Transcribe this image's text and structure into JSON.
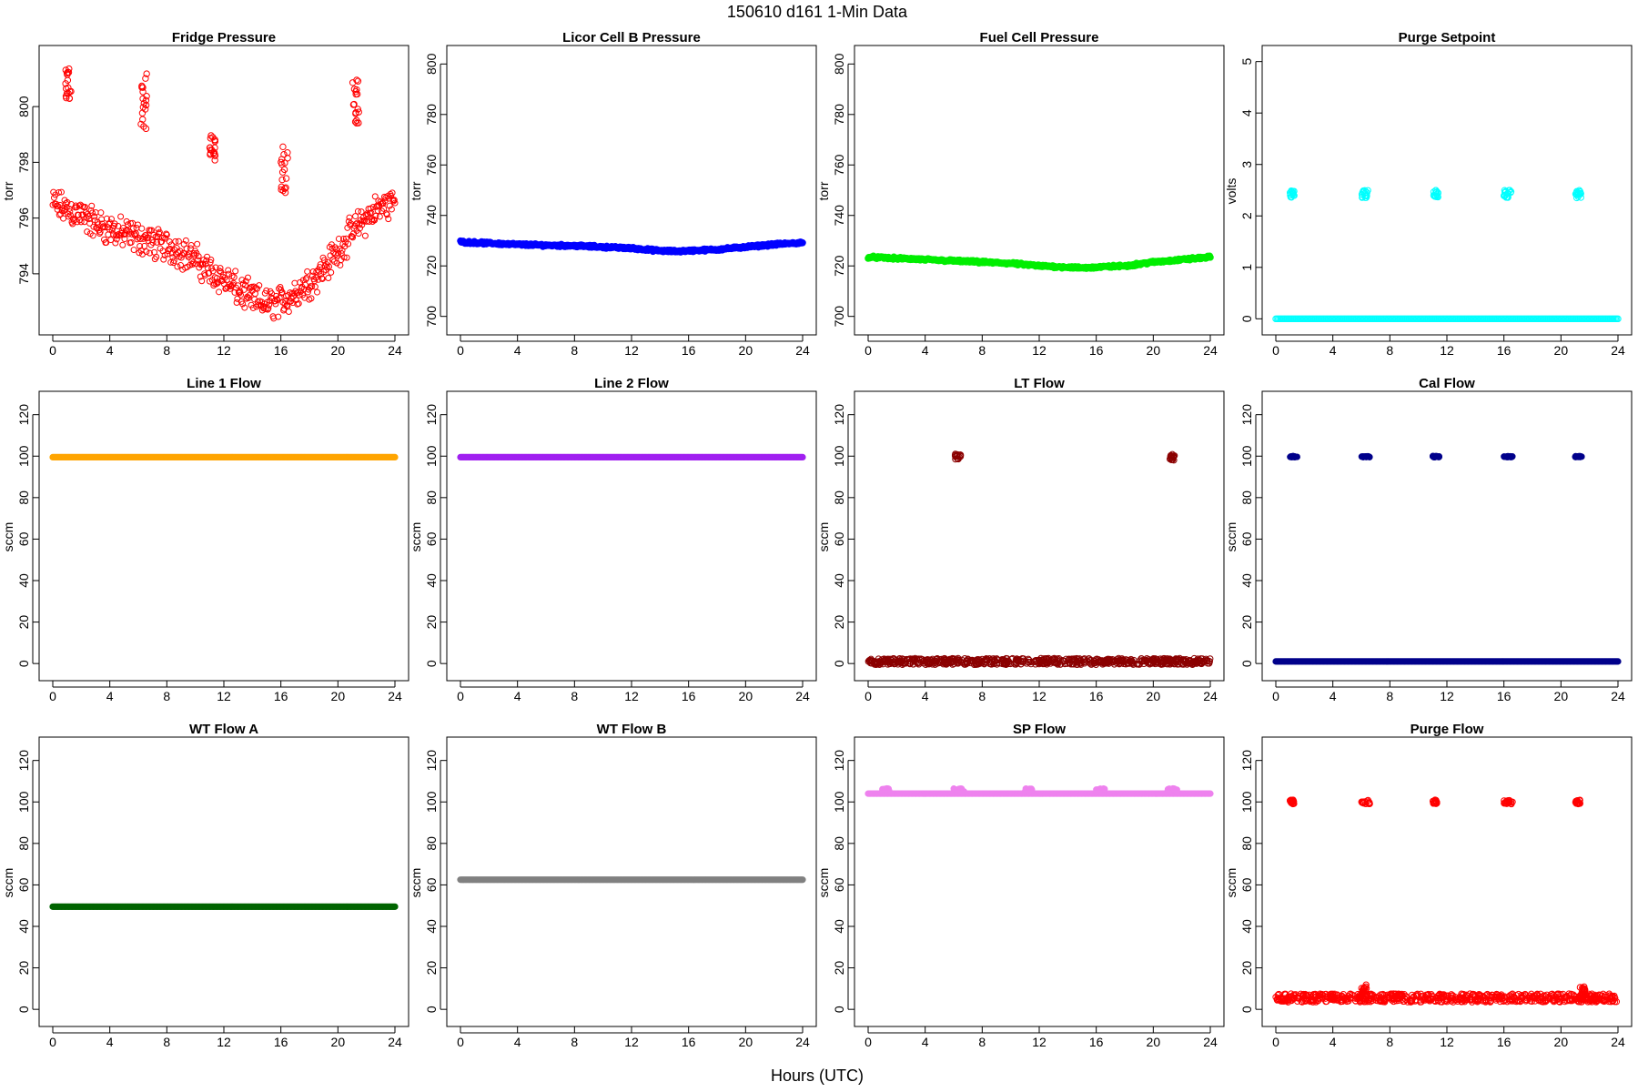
{
  "figure": {
    "title": "150610   d161   1-Min Data",
    "xlabel": "Hours (UTC)"
  },
  "chart_data": [
    {
      "type": "scatter",
      "title": "Fridge Pressure",
      "ylabel": "torr",
      "xlim": [
        0,
        24
      ],
      "ylim": [
        792.2,
        801.8
      ],
      "xticks": [
        0,
        4,
        8,
        12,
        16,
        20,
        24
      ],
      "yticks": [
        794,
        796,
        798,
        800
      ],
      "color": "#ff0000",
      "marker": "open-circle",
      "series": [
        {
          "kind": "trend",
          "x": [
            0,
            1,
            2,
            3,
            4,
            5,
            6,
            7,
            8,
            9,
            10,
            11,
            12,
            13,
            14,
            15,
            16,
            17,
            18,
            19,
            20,
            21,
            22,
            23,
            24
          ],
          "y": [
            796.5,
            796.3,
            796.1,
            795.8,
            795.6,
            795.4,
            795.3,
            795.1,
            795.0,
            794.8,
            794.5,
            794.1,
            793.8,
            793.4,
            793.1,
            792.9,
            793.0,
            793.3,
            793.7,
            794.2,
            794.8,
            795.5,
            796.0,
            796.4,
            796.6
          ],
          "spread": 0.5
        },
        {
          "kind": "cluster",
          "x": [
            0.9,
            1.3
          ],
          "y": [
            800.2,
            801.4
          ]
        },
        {
          "kind": "cluster",
          "x": [
            6.1,
            6.6
          ],
          "y": [
            799.1,
            801.3
          ]
        },
        {
          "kind": "cluster",
          "x": [
            11.0,
            11.4
          ],
          "y": [
            798.0,
            799.0
          ]
        },
        {
          "kind": "cluster",
          "x": [
            16.0,
            16.5
          ],
          "y": [
            796.9,
            798.7
          ]
        },
        {
          "kind": "cluster",
          "x": [
            21.0,
            21.5
          ],
          "y": [
            799.4,
            801.0
          ]
        }
      ]
    },
    {
      "type": "scatter",
      "title": "Licor Cell B Pressure",
      "ylabel": "torr",
      "xlim": [
        0,
        24
      ],
      "ylim": [
        697,
        803
      ],
      "xticks": [
        0,
        4,
        8,
        12,
        16,
        20,
        24
      ],
      "yticks": [
        700,
        720,
        740,
        760,
        780,
        800
      ],
      "color": "#0000ff",
      "marker": "filled-circle",
      "series": [
        {
          "kind": "trend",
          "x": [
            0,
            2,
            4,
            6,
            8,
            10,
            12,
            14,
            15,
            16,
            18,
            20,
            22,
            24
          ],
          "y": [
            729.5,
            729.0,
            728.5,
            728.2,
            728.0,
            727.5,
            727.0,
            726.0,
            725.8,
            726.0,
            726.5,
            727.5,
            728.5,
            729.2
          ],
          "spread": 0.4
        }
      ]
    },
    {
      "type": "scatter",
      "title": "Fuel Cell Pressure",
      "ylabel": "torr",
      "xlim": [
        0,
        24
      ],
      "ylim": [
        697,
        803
      ],
      "xticks": [
        0,
        4,
        8,
        12,
        16,
        20,
        24
      ],
      "yticks": [
        700,
        720,
        740,
        760,
        780,
        800
      ],
      "color": "#00ee00",
      "marker": "filled-circle",
      "series": [
        {
          "kind": "trend",
          "x": [
            0,
            2,
            4,
            6,
            8,
            10,
            12,
            14,
            15,
            16,
            18,
            20,
            22,
            24
          ],
          "y": [
            723.5,
            723.0,
            722.5,
            722.0,
            721.5,
            721.0,
            720.0,
            719.5,
            719.2,
            719.5,
            720.0,
            721.5,
            722.5,
            723.5
          ],
          "spread": 0.4
        }
      ]
    },
    {
      "type": "scatter",
      "title": "Purge Setpoint",
      "ylabel": "volts",
      "xlim": [
        0,
        24
      ],
      "ylim": [
        -0.1,
        5.1
      ],
      "xticks": [
        0,
        4,
        8,
        12,
        16,
        20,
        24
      ],
      "yticks": [
        0,
        1,
        2,
        3,
        4,
        5
      ],
      "color": "#00ffff",
      "marker": "open-circle",
      "series": [
        {
          "kind": "line",
          "x": [
            0,
            24
          ],
          "y": [
            0,
            0
          ]
        },
        {
          "kind": "cluster",
          "x": [
            1.0,
            1.3
          ],
          "y": [
            2.35,
            2.5
          ]
        },
        {
          "kind": "cluster",
          "x": [
            6.0,
            6.5
          ],
          "y": [
            2.35,
            2.5
          ]
        },
        {
          "kind": "cluster",
          "x": [
            11.0,
            11.4
          ],
          "y": [
            2.35,
            2.5
          ]
        },
        {
          "kind": "cluster",
          "x": [
            16.0,
            16.5
          ],
          "y": [
            2.35,
            2.5
          ]
        },
        {
          "kind": "cluster",
          "x": [
            21.0,
            21.4
          ],
          "y": [
            2.35,
            2.5
          ]
        }
      ]
    },
    {
      "type": "scatter",
      "title": "Line 1 Flow",
      "ylabel": "sccm",
      "xlim": [
        0,
        24
      ],
      "ylim": [
        -3,
        126
      ],
      "xticks": [
        0,
        4,
        8,
        12,
        16,
        20,
        24
      ],
      "yticks": [
        0,
        20,
        40,
        60,
        80,
        100,
        120
      ],
      "color": "#ffa500",
      "marker": "filled-circle",
      "series": [
        {
          "kind": "line",
          "x": [
            0,
            24
          ],
          "y": [
            99.5,
            99.5
          ]
        }
      ]
    },
    {
      "type": "scatter",
      "title": "Line 2 Flow",
      "ylabel": "sccm",
      "xlim": [
        0,
        24
      ],
      "ylim": [
        -3,
        126
      ],
      "xticks": [
        0,
        4,
        8,
        12,
        16,
        20,
        24
      ],
      "yticks": [
        0,
        20,
        40,
        60,
        80,
        100,
        120
      ],
      "color": "#a020f0",
      "marker": "filled-circle",
      "series": [
        {
          "kind": "line",
          "x": [
            0,
            24
          ],
          "y": [
            99.5,
            99.5
          ]
        }
      ]
    },
    {
      "type": "scatter",
      "title": "LT Flow",
      "ylabel": "sccm",
      "xlim": [
        0,
        24
      ],
      "ylim": [
        -3,
        126
      ],
      "xticks": [
        0,
        4,
        8,
        12,
        16,
        20,
        24
      ],
      "yticks": [
        0,
        20,
        40,
        60,
        80,
        100,
        120
      ],
      "color": "#8b0000",
      "marker": "open-circle",
      "series": [
        {
          "kind": "band",
          "x": [
            0,
            24
          ],
          "y": [
            -0.5,
            2.5
          ]
        },
        {
          "kind": "cluster",
          "x": [
            6.1,
            6.5
          ],
          "y": [
            98.5,
            101
          ]
        },
        {
          "kind": "cluster",
          "x": [
            21.1,
            21.5
          ],
          "y": [
            98.0,
            101
          ]
        }
      ]
    },
    {
      "type": "scatter",
      "title": "Cal Flow",
      "ylabel": "sccm",
      "xlim": [
        0,
        24
      ],
      "ylim": [
        -3,
        126
      ],
      "xticks": [
        0,
        4,
        8,
        12,
        16,
        20,
        24
      ],
      "yticks": [
        0,
        20,
        40,
        60,
        80,
        100,
        120
      ],
      "color": "#00008b",
      "marker": "filled-circle",
      "series": [
        {
          "kind": "line",
          "x": [
            0,
            24
          ],
          "y": [
            1,
            1
          ]
        },
        {
          "kind": "cluster",
          "x": [
            1.0,
            1.5
          ],
          "y": [
            99.5,
            100
          ]
        },
        {
          "kind": "cluster",
          "x": [
            6.0,
            6.6
          ],
          "y": [
            99.5,
            100
          ]
        },
        {
          "kind": "cluster",
          "x": [
            11.0,
            11.5
          ],
          "y": [
            99.5,
            100
          ]
        },
        {
          "kind": "cluster",
          "x": [
            16.0,
            16.6
          ],
          "y": [
            99.5,
            100
          ]
        },
        {
          "kind": "cluster",
          "x": [
            21.0,
            21.5
          ],
          "y": [
            99.5,
            100
          ]
        }
      ]
    },
    {
      "type": "scatter",
      "title": "WT Flow A",
      "ylabel": "sccm",
      "xlim": [
        0,
        24
      ],
      "ylim": [
        -3,
        126
      ],
      "xticks": [
        0,
        4,
        8,
        12,
        16,
        20,
        24
      ],
      "yticks": [
        0,
        20,
        40,
        60,
        80,
        100,
        120
      ],
      "color": "#006400",
      "marker": "filled-circle",
      "series": [
        {
          "kind": "line",
          "x": [
            0,
            24
          ],
          "y": [
            49.5,
            49.5
          ]
        }
      ]
    },
    {
      "type": "scatter",
      "title": "WT Flow B",
      "ylabel": "sccm",
      "xlim": [
        0,
        24
      ],
      "ylim": [
        -3,
        126
      ],
      "xticks": [
        0,
        4,
        8,
        12,
        16,
        20,
        24
      ],
      "yticks": [
        0,
        20,
        40,
        60,
        80,
        100,
        120
      ],
      "color": "#808080",
      "marker": "filled-circle",
      "series": [
        {
          "kind": "line",
          "x": [
            0,
            24
          ],
          "y": [
            62.5,
            62.5
          ]
        }
      ]
    },
    {
      "type": "scatter",
      "title": "SP Flow",
      "ylabel": "sccm",
      "xlim": [
        0,
        24
      ],
      "ylim": [
        -3,
        126
      ],
      "xticks": [
        0,
        4,
        8,
        12,
        16,
        20,
        24
      ],
      "yticks": [
        0,
        20,
        40,
        60,
        80,
        100,
        120
      ],
      "color": "#ee82ee",
      "marker": "filled-circle",
      "series": [
        {
          "kind": "line",
          "x": [
            0,
            24
          ],
          "y": [
            104,
            104
          ]
        },
        {
          "kind": "cluster",
          "x": [
            1.0,
            1.5
          ],
          "y": [
            105,
            106.5
          ]
        },
        {
          "kind": "cluster",
          "x": [
            6.0,
            6.8
          ],
          "y": [
            105,
            106.5
          ]
        },
        {
          "kind": "cluster",
          "x": [
            11.0,
            11.5
          ],
          "y": [
            105,
            106.5
          ]
        },
        {
          "kind": "cluster",
          "x": [
            16.0,
            16.6
          ],
          "y": [
            105,
            106.5
          ]
        },
        {
          "kind": "cluster",
          "x": [
            21.0,
            21.7
          ],
          "y": [
            105,
            106.5
          ]
        }
      ]
    },
    {
      "type": "scatter",
      "title": "Purge Flow",
      "ylabel": "sccm",
      "xlim": [
        0,
        24
      ],
      "ylim": [
        -3,
        126
      ],
      "xticks": [
        0,
        4,
        8,
        12,
        16,
        20,
        24
      ],
      "yticks": [
        0,
        20,
        40,
        60,
        80,
        100,
        120
      ],
      "color": "#ff0000",
      "marker": "open-circle",
      "series": [
        {
          "kind": "band",
          "x": [
            0,
            24
          ],
          "y": [
            3.5,
            7.5
          ]
        },
        {
          "kind": "cluster",
          "x": [
            1.0,
            1.3
          ],
          "y": [
            99,
            101
          ]
        },
        {
          "kind": "cluster",
          "x": [
            6.0,
            6.6
          ],
          "y": [
            99,
            101
          ]
        },
        {
          "kind": "cluster",
          "x": [
            11.0,
            11.4
          ],
          "y": [
            99,
            101
          ]
        },
        {
          "kind": "cluster",
          "x": [
            16.0,
            16.6
          ],
          "y": [
            99,
            101
          ]
        },
        {
          "kind": "cluster",
          "x": [
            21.0,
            21.4
          ],
          "y": [
            99,
            101
          ]
        },
        {
          "kind": "cluster",
          "x": [
            6.0,
            6.4
          ],
          "y": [
            7,
            12
          ]
        },
        {
          "kind": "cluster",
          "x": [
            21.3,
            21.7
          ],
          "y": [
            7,
            11
          ]
        }
      ]
    }
  ]
}
